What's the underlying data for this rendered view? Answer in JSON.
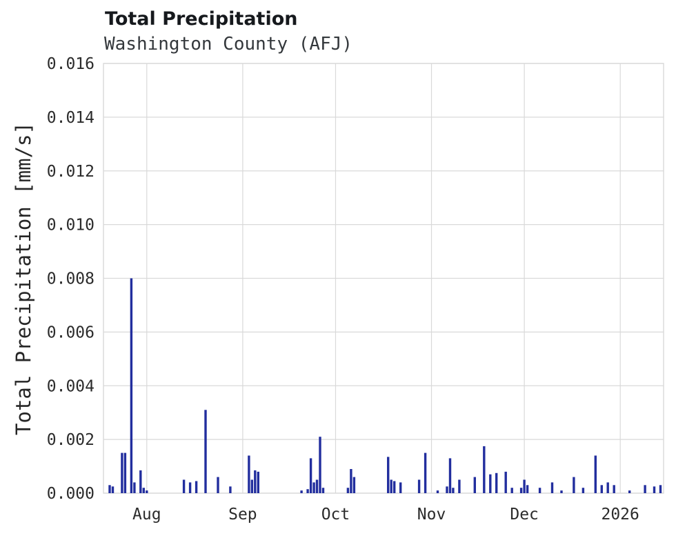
{
  "header": {
    "title": "Total Precipitation",
    "subtitle": "Washington County (AFJ)"
  },
  "chart_data": {
    "type": "bar",
    "title": "Total Precipitation",
    "subtitle": "Washington County (AFJ)",
    "xlabel": "",
    "ylabel": "Total Precipitation [mm/s]",
    "ylim": [
      0,
      0.016
    ],
    "ytick_step": 0.002,
    "ytick_labels": [
      "0.000",
      "0.002",
      "0.004",
      "0.006",
      "0.008",
      "0.010",
      "0.012",
      "0.014",
      "0.016"
    ],
    "grid": true,
    "legend": false,
    "grid_color": "#d9d9d9",
    "bar_color": "#222e9e",
    "x_domain_days": [
      0,
      181
    ],
    "xticks": [
      {
        "label": "Aug",
        "day": 14
      },
      {
        "label": "Sep",
        "day": 45
      },
      {
        "label": "Oct",
        "day": 75
      },
      {
        "label": "Nov",
        "day": 106
      },
      {
        "label": "Dec",
        "day": 136
      },
      {
        "label": "2026",
        "day": 167
      }
    ],
    "points": [
      {
        "day": 2,
        "value": 0.0003
      },
      {
        "day": 3,
        "value": 0.00025
      },
      {
        "day": 6,
        "value": 0.0015
      },
      {
        "day": 7,
        "value": 0.0015
      },
      {
        "day": 9,
        "value": 0.008
      },
      {
        "day": 10,
        "value": 0.0004
      },
      {
        "day": 12,
        "value": 0.00085
      },
      {
        "day": 13,
        "value": 0.0002
      },
      {
        "day": 14,
        "value": 0.0001
      },
      {
        "day": 26,
        "value": 0.0005
      },
      {
        "day": 28,
        "value": 0.0004
      },
      {
        "day": 30,
        "value": 0.00045
      },
      {
        "day": 33,
        "value": 0.0031
      },
      {
        "day": 37,
        "value": 0.0006
      },
      {
        "day": 41,
        "value": 0.00025
      },
      {
        "day": 47,
        "value": 0.0014
      },
      {
        "day": 48,
        "value": 0.0005
      },
      {
        "day": 49,
        "value": 0.00085
      },
      {
        "day": 50,
        "value": 0.0008
      },
      {
        "day": 64,
        "value": 0.0001
      },
      {
        "day": 66,
        "value": 0.00015
      },
      {
        "day": 67,
        "value": 0.0013
      },
      {
        "day": 68,
        "value": 0.0004
      },
      {
        "day": 69,
        "value": 0.0005
      },
      {
        "day": 70,
        "value": 0.0021
      },
      {
        "day": 71,
        "value": 0.0002
      },
      {
        "day": 79,
        "value": 0.0002
      },
      {
        "day": 80,
        "value": 0.0009
      },
      {
        "day": 81,
        "value": 0.0006
      },
      {
        "day": 92,
        "value": 0.00135
      },
      {
        "day": 93,
        "value": 0.0005
      },
      {
        "day": 94,
        "value": 0.00045
      },
      {
        "day": 96,
        "value": 0.0004
      },
      {
        "day": 102,
        "value": 0.0005
      },
      {
        "day": 104,
        "value": 0.0015
      },
      {
        "day": 108,
        "value": 0.0001
      },
      {
        "day": 111,
        "value": 0.00025
      },
      {
        "day": 112,
        "value": 0.0013
      },
      {
        "day": 113,
        "value": 0.0002
      },
      {
        "day": 115,
        "value": 0.0005
      },
      {
        "day": 120,
        "value": 0.0006
      },
      {
        "day": 123,
        "value": 0.00175
      },
      {
        "day": 125,
        "value": 0.0007
      },
      {
        "day": 127,
        "value": 0.00075
      },
      {
        "day": 130,
        "value": 0.0008
      },
      {
        "day": 132,
        "value": 0.0002
      },
      {
        "day": 135,
        "value": 0.0002
      },
      {
        "day": 136,
        "value": 0.0005
      },
      {
        "day": 137,
        "value": 0.0003
      },
      {
        "day": 141,
        "value": 0.0002
      },
      {
        "day": 145,
        "value": 0.0004
      },
      {
        "day": 148,
        "value": 0.0001
      },
      {
        "day": 152,
        "value": 0.0006
      },
      {
        "day": 155,
        "value": 0.0002
      },
      {
        "day": 159,
        "value": 0.0014
      },
      {
        "day": 161,
        "value": 0.0003
      },
      {
        "day": 163,
        "value": 0.0004
      },
      {
        "day": 165,
        "value": 0.0003
      },
      {
        "day": 170,
        "value": 0.0001
      },
      {
        "day": 175,
        "value": 0.0003
      },
      {
        "day": 178,
        "value": 0.00025
      },
      {
        "day": 180,
        "value": 0.0003
      }
    ]
  }
}
